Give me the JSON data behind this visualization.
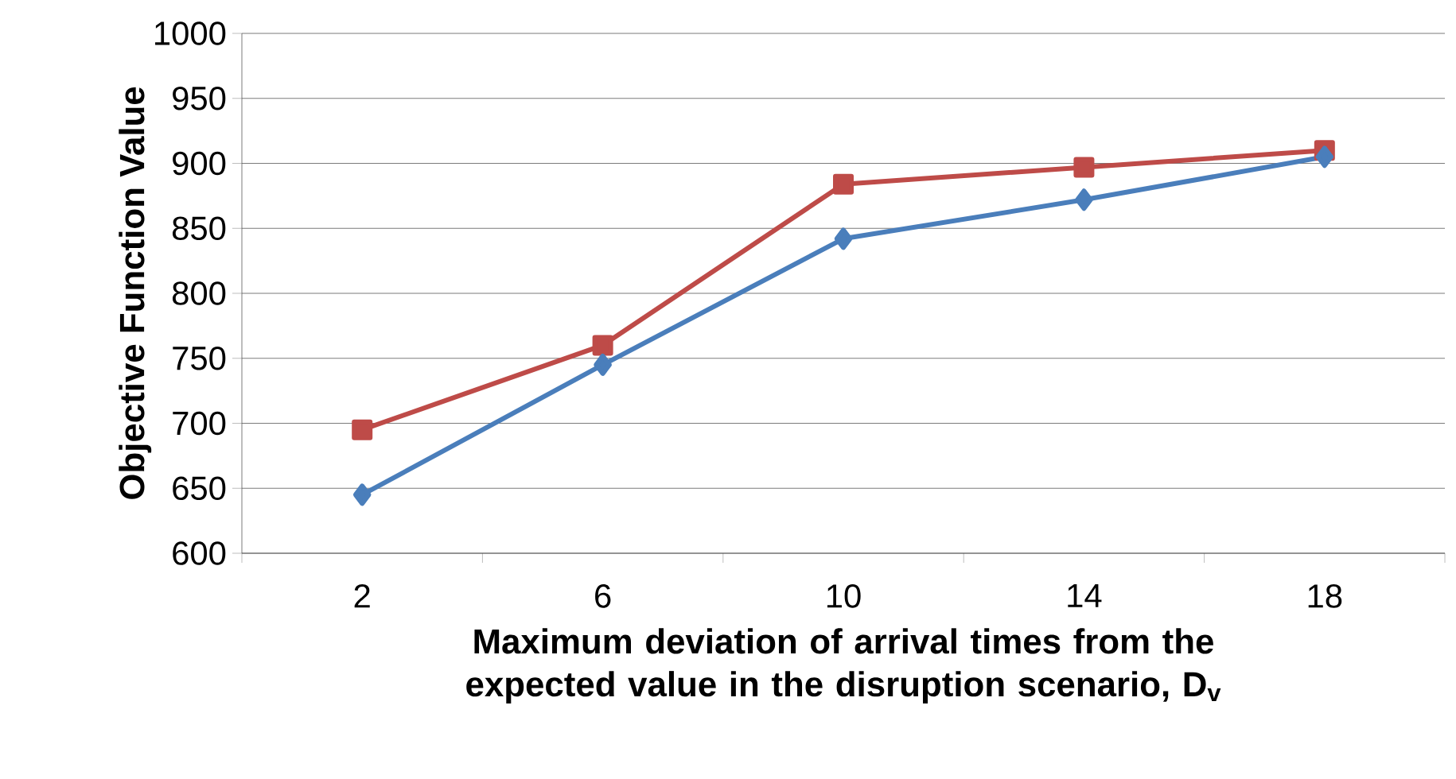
{
  "chart_data": {
    "type": "line",
    "xlabel": "Maximum deviation of arrival times from the expected value in the disruption scenario, D$_{v}$",
    "ylabel": "Objective Function Value",
    "categories": [
      "2",
      "6",
      "10",
      "14",
      "18"
    ],
    "series": [
      {
        "color": "#4a7ebb",
        "marker": "diamond",
        "values": [
          645,
          745,
          842,
          872,
          905
        ]
      },
      {
        "color": "#be4b48",
        "marker": "square",
        "values": [
          695,
          760,
          884,
          897,
          910
        ]
      }
    ],
    "ylim": [
      600,
      1000
    ],
    "yticks": [
      600,
      650,
      700,
      750,
      800,
      850,
      900,
      950,
      1000
    ],
    "grid": "y",
    "line_style": "solid"
  }
}
